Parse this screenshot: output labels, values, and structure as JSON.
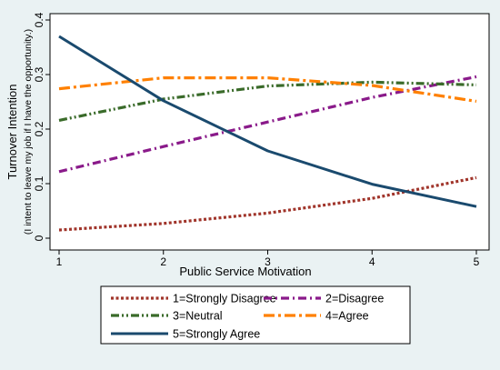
{
  "chart_data": {
    "type": "line",
    "title": "",
    "xlabel": "Public Service Motivation",
    "ylabel": "Turnover Intention",
    "ylabel_sub": "(I intent to leave my job if I have the opportunity.)",
    "x": [
      1,
      2,
      3,
      4,
      5
    ],
    "x_ticks": [
      "1",
      "2",
      "3",
      "4",
      "5"
    ],
    "y_ticks": [
      "0",
      "0.1",
      "0.2",
      "0.3",
      "0.4"
    ],
    "xlim": [
      1,
      5
    ],
    "ylim": [
      0,
      0.4
    ],
    "grid": false,
    "legend_position": "bottom",
    "series": [
      {
        "name": "1=Strongly Disagree",
        "color": "#a0342a",
        "dash": "dot",
        "values": [
          0.015,
          0.027,
          0.046,
          0.073,
          0.111
        ]
      },
      {
        "name": "2=Disagree",
        "color": "#8a1a8a",
        "dash": "dashdot",
        "values": [
          0.122,
          0.168,
          0.213,
          0.258,
          0.296
        ]
      },
      {
        "name": "3=Neutral",
        "color": "#3a6b2a",
        "dash": "dashdotdot",
        "values": [
          0.216,
          0.255,
          0.279,
          0.286,
          0.281
        ]
      },
      {
        "name": "4=Agree",
        "color": "#ff8000",
        "dash": "longdashdot",
        "values": [
          0.274,
          0.294,
          0.294,
          0.28,
          0.251
        ]
      },
      {
        "name": "5=Strongly Agree",
        "color": "#1a4a6e",
        "dash": "solid",
        "values": [
          0.37,
          0.252,
          0.16,
          0.099,
          0.058
        ]
      }
    ]
  }
}
